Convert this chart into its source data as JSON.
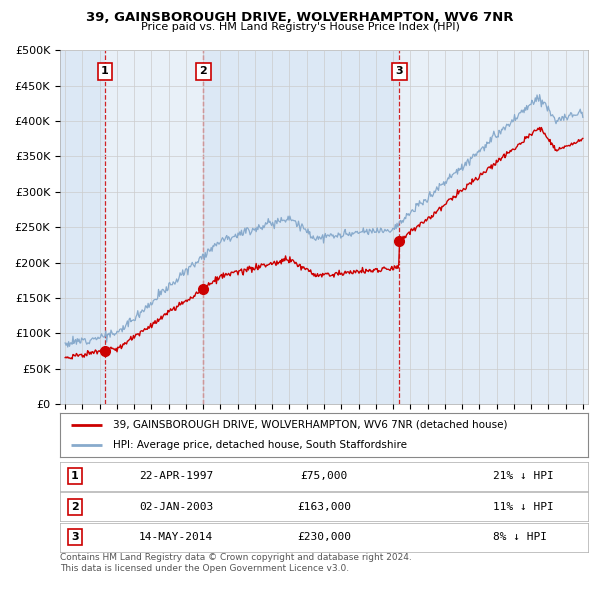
{
  "title_line1": "39, GAINSBOROUGH DRIVE, WOLVERHAMPTON, WV6 7NR",
  "title_line2": "Price paid vs. HM Land Registry's House Price Index (HPI)",
  "legend_label1": "39, GAINSBOROUGH DRIVE, WOLVERHAMPTON, WV6 7NR (detached house)",
  "legend_label2": "HPI: Average price, detached house, South Staffordshire",
  "footnote": "Contains HM Land Registry data © Crown copyright and database right 2024.\nThis data is licensed under the Open Government Licence v3.0.",
  "sale_color": "#cc0000",
  "hpi_color": "#88aacc",
  "hpi_fill_color": "#dce8f5",
  "background_color": "#ffffff",
  "plot_bg_color": "#eef3fa",
  "grid_color": "#cccccc",
  "ylim": [
    0,
    500000
  ],
  "yticks": [
    0,
    50000,
    100000,
    150000,
    200000,
    250000,
    300000,
    350000,
    400000,
    450000,
    500000
  ],
  "ytick_labels": [
    "£0",
    "£50K",
    "£100K",
    "£150K",
    "£200K",
    "£250K",
    "£300K",
    "£350K",
    "£400K",
    "£450K",
    "£500K"
  ],
  "sale_dates": [
    1997.3,
    2003.01,
    2014.37
  ],
  "sale_prices": [
    75000,
    163000,
    230000
  ],
  "sale_labels": [
    "1",
    "2",
    "3"
  ],
  "vline_dates": [
    1997.3,
    2003.01,
    2014.37
  ],
  "table_rows": [
    {
      "num": "1",
      "date": "22-APR-1997",
      "price": "£75,000",
      "note": "21% ↓ HPI"
    },
    {
      "num": "2",
      "date": "02-JAN-2003",
      "price": "£163,000",
      "note": "11% ↓ HPI"
    },
    {
      "num": "3",
      "date": "14-MAY-2014",
      "price": "£230,000",
      "note": "8% ↓ HPI"
    }
  ],
  "xlim_start": 1994.7,
  "xlim_end": 2025.3,
  "xtick_years": [
    1995,
    1996,
    1997,
    1998,
    1999,
    2000,
    2001,
    2002,
    2003,
    2004,
    2005,
    2006,
    2007,
    2008,
    2009,
    2010,
    2011,
    2012,
    2013,
    2014,
    2015,
    2016,
    2017,
    2018,
    2019,
    2020,
    2021,
    2022,
    2023,
    2024,
    2025
  ]
}
